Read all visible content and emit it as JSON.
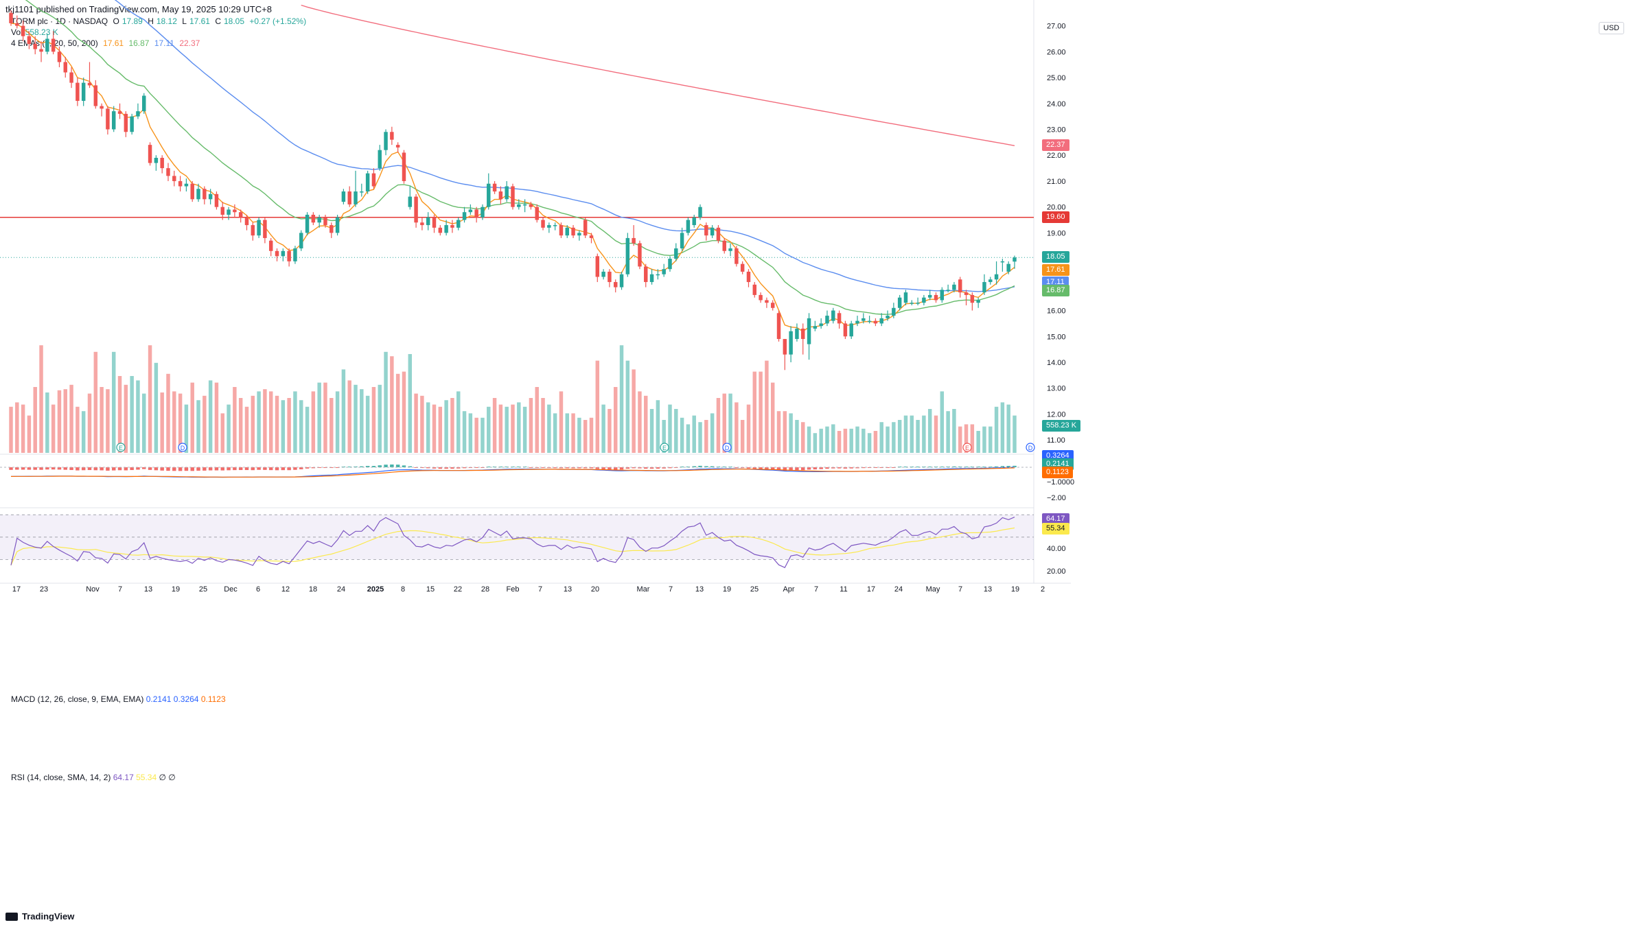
{
  "header": {
    "published": "tkj1101 published on TradingView.com, May 19, 2025 10:29 UTC+8"
  },
  "legend": {
    "symbol": "TORM plc · 1D · NASDAQ",
    "ohlc": {
      "o_label": "O",
      "o": "17.89",
      "h_label": "H",
      "h": "18.12",
      "l_label": "L",
      "l": "17.61",
      "c_label": "C",
      "c": "18.05",
      "change": "+0.27 (+1.52%)"
    },
    "vol_label": "Vol",
    "vol_value": "558.23 K",
    "ema_label": "4 EMAs (5, 20, 50, 200)",
    "ema_values": [
      "17.61",
      "16.87",
      "17.11",
      "22.37"
    ]
  },
  "currency": "USD",
  "price_axis": [
    "27.00",
    "26.00",
    "25.00",
    "24.00",
    "23.00",
    "22.00",
    "21.00",
    "20.00",
    "19.00",
    "18.00",
    "17.00",
    "16.00",
    "15.00",
    "14.00",
    "13.00",
    "12.00",
    "11.00"
  ],
  "badges": {
    "ema200": "22.37",
    "level": "19.60",
    "last": "18.05",
    "ema5": "17.61",
    "ema50": "17.11",
    "ema20": "16.87",
    "volume": "558.23 K",
    "macd_signal_badge": "0.3264",
    "macd_line_badge": "0.2141",
    "macd_hist_badge": "0.1123",
    "rsi_badge": "64.17",
    "rsi_sma_badge": "55.34"
  },
  "macd": {
    "label": "MACD (12, 26, close, 9, EMA, EMA)",
    "v1": "0.2141",
    "v2": "0.3264",
    "v3": "0.1123",
    "axis": [
      "−1.0000",
      "−2.00"
    ]
  },
  "rsi": {
    "label": "RSI (14, close, SMA, 14, 2)",
    "v1": "64.17",
    "v2": "55.34",
    "extra": "∅ ∅",
    "axis": [
      "40.00",
      "20.00"
    ]
  },
  "time_axis": [
    "17",
    "23",
    "Nov",
    "7",
    "13",
    "19",
    "25",
    "Dec",
    "6",
    "12",
    "18",
    "24",
    "2025",
    "8",
    "15",
    "22",
    "28",
    "Feb",
    "7",
    "13",
    "20",
    "Mar",
    "7",
    "13",
    "19",
    "25",
    "Apr",
    "7",
    "11",
    "17",
    "24",
    "May",
    "7",
    "13",
    "19",
    "2"
  ],
  "events": [
    "E",
    "D",
    "E",
    "D",
    "E",
    "D"
  ],
  "footer": "TradingView",
  "colors": {
    "up": "#26a69a",
    "down": "#ef5350",
    "ema5": "#f7931a",
    "ema20": "#66bb6a",
    "ema50": "#5b8def",
    "ema200": "#f26d7d",
    "level": "#e53935",
    "macd_line": "#2962ff",
    "macd_signal": "#ff6d00",
    "rsi_line": "#7e57c2",
    "rsi_sma": "#fbe94d"
  },
  "chart_data": {
    "type": "candlestick",
    "ylim": [
      10.5,
      27.6
    ],
    "horizontal_level": 19.6,
    "candles": [
      [
        27.5,
        27.1,
        27.6,
        27.0
      ],
      [
        27.1,
        27.0,
        27.4,
        26.9
      ],
      [
        27.0,
        26.6,
        27.2,
        26.4
      ],
      [
        26.6,
        26.3,
        26.8,
        26.1
      ],
      [
        26.3,
        26.1,
        26.6,
        25.9
      ],
      [
        26.1,
        26.0,
        26.4,
        25.6
      ],
      [
        26.0,
        26.5,
        26.7,
        25.9
      ],
      [
        26.5,
        26.0,
        26.8,
        25.9
      ],
      [
        26.0,
        25.6,
        26.2,
        25.4
      ],
      [
        25.6,
        25.2,
        25.8,
        25.0
      ],
      [
        25.2,
        24.8,
        25.4,
        24.6
      ],
      [
        24.8,
        24.1,
        25.0,
        23.9
      ],
      [
        24.1,
        24.8,
        25.0,
        23.9
      ],
      [
        24.8,
        24.7,
        25.6,
        24.6
      ],
      [
        24.7,
        23.9,
        24.9,
        23.8
      ],
      [
        23.9,
        23.8,
        24.0,
        23.5
      ],
      [
        23.8,
        23.0,
        23.9,
        22.8
      ],
      [
        23.0,
        23.7,
        23.9,
        22.9
      ],
      [
        23.7,
        23.6,
        24.0,
        23.4
      ],
      [
        23.6,
        22.9,
        23.7,
        22.7
      ],
      [
        22.9,
        23.5,
        23.6,
        22.8
      ],
      [
        23.5,
        23.7,
        24.0,
        23.4
      ],
      [
        23.7,
        24.3,
        24.4,
        23.6
      ],
      [
        22.4,
        21.7,
        22.5,
        21.6
      ],
      [
        21.7,
        21.9,
        22.0,
        21.4
      ],
      [
        21.9,
        21.5,
        22.0,
        21.3
      ],
      [
        21.5,
        21.2,
        21.7,
        21.0
      ],
      [
        21.2,
        21.0,
        21.4,
        20.8
      ],
      [
        21.0,
        20.8,
        21.2,
        20.6
      ],
      [
        20.8,
        20.9,
        21.1,
        20.6
      ],
      [
        20.9,
        20.3,
        21.0,
        20.2
      ],
      [
        20.3,
        20.7,
        20.9,
        20.2
      ],
      [
        20.7,
        20.3,
        20.8,
        20.1
      ],
      [
        20.3,
        20.5,
        20.7,
        20.1
      ],
      [
        20.5,
        20.0,
        20.6,
        19.9
      ],
      [
        20.0,
        19.7,
        20.2,
        19.5
      ],
      [
        19.7,
        19.9,
        20.0,
        19.5
      ],
      [
        19.9,
        19.8,
        20.1,
        19.6
      ],
      [
        19.8,
        19.6,
        19.9,
        19.4
      ],
      [
        19.6,
        19.3,
        19.7,
        19.1
      ],
      [
        19.3,
        18.9,
        19.4,
        18.7
      ],
      [
        18.9,
        19.5,
        19.6,
        18.8
      ],
      [
        19.5,
        18.8,
        19.6,
        18.6
      ],
      [
        18.7,
        18.3,
        18.8,
        18.1
      ],
      [
        18.3,
        18.1,
        18.4,
        17.9
      ],
      [
        18.1,
        18.3,
        18.4,
        17.9
      ],
      [
        18.3,
        17.9,
        18.4,
        17.7
      ],
      [
        17.9,
        18.4,
        18.5,
        17.8
      ],
      [
        18.4,
        19.0,
        19.1,
        18.3
      ],
      [
        19.0,
        19.7,
        19.8,
        18.9
      ],
      [
        19.7,
        19.4,
        19.8,
        19.3
      ],
      [
        19.4,
        19.6,
        19.7,
        19.2
      ],
      [
        19.6,
        19.3,
        19.7,
        19.2
      ],
      [
        19.3,
        19.0,
        19.4,
        18.8
      ],
      [
        19.0,
        19.6,
        19.7,
        18.9
      ],
      [
        20.2,
        20.6,
        20.7,
        20.1
      ],
      [
        20.6,
        20.1,
        20.8,
        20.0
      ],
      [
        20.1,
        20.6,
        21.4,
        20.0
      ],
      [
        20.6,
        20.6,
        20.9,
        20.4
      ],
      [
        20.6,
        21.3,
        21.4,
        20.5
      ],
      [
        21.3,
        20.8,
        21.5,
        20.7
      ],
      [
        21.5,
        22.2,
        22.4,
        21.4
      ],
      [
        22.2,
        22.9,
        23.0,
        22.0
      ],
      [
        22.9,
        22.6,
        23.1,
        22.4
      ],
      [
        22.4,
        22.3,
        22.5,
        22.1
      ],
      [
        22.1,
        21.0,
        22.2,
        20.9
      ],
      [
        20.0,
        20.4,
        20.8,
        19.9
      ],
      [
        20.4,
        19.4,
        20.5,
        19.2
      ],
      [
        19.4,
        19.3,
        19.6,
        19.1
      ],
      [
        19.3,
        19.6,
        19.8,
        19.1
      ],
      [
        19.6,
        19.2,
        19.7,
        19.0
      ],
      [
        19.2,
        19.0,
        19.3,
        18.9
      ],
      [
        19.0,
        19.3,
        19.5,
        18.9
      ],
      [
        19.3,
        19.2,
        19.5,
        19.0
      ],
      [
        19.2,
        19.5,
        19.6,
        19.1
      ],
      [
        19.5,
        19.8,
        20.0,
        19.4
      ],
      [
        19.8,
        19.9,
        20.1,
        19.7
      ],
      [
        19.9,
        19.6,
        20.0,
        19.4
      ],
      [
        19.6,
        20.0,
        20.1,
        19.5
      ],
      [
        20.0,
        20.9,
        21.3,
        19.9
      ],
      [
        20.9,
        20.6,
        21.0,
        20.5
      ],
      [
        20.6,
        20.3,
        20.8,
        20.1
      ],
      [
        20.3,
        20.8,
        21.0,
        20.2
      ],
      [
        20.8,
        20.0,
        20.9,
        19.9
      ],
      [
        20.0,
        20.1,
        20.3,
        19.9
      ],
      [
        20.1,
        20.1,
        20.3,
        19.8
      ],
      [
        20.1,
        20.0,
        20.2,
        19.9
      ],
      [
        20.0,
        19.5,
        20.1,
        19.4
      ],
      [
        19.5,
        19.2,
        19.6,
        19.1
      ],
      [
        19.2,
        19.3,
        19.4,
        19.0
      ],
      [
        19.3,
        19.3,
        19.4,
        19.1
      ],
      [
        19.3,
        18.9,
        19.4,
        18.8
      ],
      [
        18.9,
        19.2,
        19.3,
        18.8
      ],
      [
        19.2,
        18.9,
        19.3,
        18.8
      ],
      [
        18.9,
        19.0,
        19.1,
        18.7
      ],
      [
        19.5,
        18.9,
        19.6,
        18.8
      ],
      [
        18.9,
        18.8,
        19.0,
        18.6
      ],
      [
        18.1,
        17.3,
        18.2,
        17.1
      ],
      [
        17.3,
        17.5,
        17.6,
        17.2
      ],
      [
        17.5,
        17.1,
        17.6,
        16.9
      ],
      [
        17.1,
        16.9,
        17.2,
        16.7
      ],
      [
        16.9,
        17.4,
        17.5,
        16.8
      ],
      [
        17.4,
        18.8,
        19.0,
        17.3
      ],
      [
        18.8,
        18.6,
        19.3,
        18.5
      ],
      [
        18.6,
        17.7,
        18.7,
        17.6
      ],
      [
        17.7,
        17.1,
        17.8,
        16.9
      ],
      [
        17.1,
        17.4,
        17.6,
        17.0
      ],
      [
        17.4,
        17.4,
        17.6,
        17.2
      ],
      [
        17.4,
        17.6,
        17.8,
        17.3
      ],
      [
        17.6,
        18.0,
        18.1,
        17.5
      ],
      [
        18.0,
        18.4,
        18.6,
        17.9
      ],
      [
        18.4,
        19.0,
        19.2,
        18.3
      ],
      [
        19.0,
        19.5,
        19.6,
        18.9
      ],
      [
        19.3,
        19.6,
        19.7,
        19.2
      ],
      [
        19.6,
        20.0,
        20.1,
        19.5
      ],
      [
        19.3,
        18.9,
        19.4,
        18.7
      ],
      [
        18.9,
        19.2,
        19.3,
        18.8
      ],
      [
        19.2,
        18.7,
        19.3,
        18.6
      ],
      [
        18.7,
        18.3,
        18.8,
        18.2
      ],
      [
        18.3,
        18.4,
        18.6,
        18.1
      ],
      [
        18.4,
        17.8,
        18.5,
        17.7
      ],
      [
        17.8,
        17.5,
        17.9,
        17.4
      ],
      [
        17.5,
        17.1,
        17.6,
        16.9
      ],
      [
        17.0,
        16.6,
        17.1,
        16.5
      ],
      [
        16.6,
        16.4,
        16.7,
        16.3
      ],
      [
        16.4,
        16.3,
        16.5,
        16.1
      ],
      [
        16.3,
        16.1,
        16.4,
        16.0
      ],
      [
        15.9,
        14.9,
        16.0,
        14.8
      ],
      [
        14.9,
        14.3,
        14.9,
        13.7
      ],
      [
        14.3,
        15.2,
        15.4,
        14.0
      ],
      [
        14.9,
        15.3,
        15.5,
        14.8
      ],
      [
        15.3,
        14.9,
        15.5,
        14.3
      ],
      [
        14.7,
        15.7,
        15.9,
        14.1
      ],
      [
        15.3,
        15.4,
        15.6,
        15.2
      ],
      [
        15.4,
        15.5,
        15.7,
        15.3
      ],
      [
        15.5,
        15.8,
        16.0,
        15.4
      ],
      [
        15.6,
        16.0,
        16.1,
        15.5
      ],
      [
        15.9,
        15.5,
        16.0,
        15.3
      ],
      [
        15.5,
        15.0,
        15.6,
        14.9
      ],
      [
        15.0,
        15.5,
        15.6,
        14.9
      ],
      [
        15.5,
        15.6,
        15.8,
        15.4
      ],
      [
        15.6,
        15.7,
        15.9,
        15.5
      ],
      [
        15.6,
        15.6,
        15.8,
        15.5
      ],
      [
        15.6,
        15.5,
        15.7,
        15.4
      ],
      [
        15.5,
        15.7,
        15.9,
        15.4
      ],
      [
        15.7,
        15.8,
        16.0,
        15.6
      ],
      [
        15.8,
        16.1,
        16.3,
        15.7
      ],
      [
        16.1,
        16.5,
        16.6,
        16.0
      ],
      [
        16.3,
        16.7,
        16.8,
        16.2
      ],
      [
        16.3,
        16.3,
        16.4,
        16.2
      ],
      [
        16.3,
        16.3,
        16.5,
        16.2
      ],
      [
        16.3,
        16.5,
        16.6,
        16.2
      ],
      [
        16.5,
        16.6,
        16.8,
        16.4
      ],
      [
        16.6,
        16.4,
        16.7,
        16.3
      ],
      [
        16.4,
        16.8,
        16.9,
        16.3
      ],
      [
        16.8,
        16.8,
        17.0,
        16.7
      ],
      [
        16.8,
        17.0,
        17.1,
        16.7
      ],
      [
        17.2,
        16.7,
        17.3,
        16.5
      ],
      [
        16.7,
        16.6,
        16.8,
        16.2
      ],
      [
        16.6,
        16.3,
        16.7,
        16.0
      ],
      [
        16.3,
        16.4,
        16.5,
        16.1
      ],
      [
        16.7,
        17.1,
        17.4,
        16.6
      ],
      [
        17.1,
        17.2,
        17.3,
        17.0
      ],
      [
        17.2,
        17.4,
        17.9,
        17.0
      ],
      [
        17.9,
        17.9,
        18.0,
        17.5
      ],
      [
        17.5,
        17.8,
        17.9,
        17.4
      ],
      [
        17.89,
        18.05,
        18.12,
        17.61
      ]
    ],
    "ema5_end": 17.61,
    "ema20_end": 16.87,
    "ema50_end": 17.11,
    "ema200_end": 22.37
  }
}
